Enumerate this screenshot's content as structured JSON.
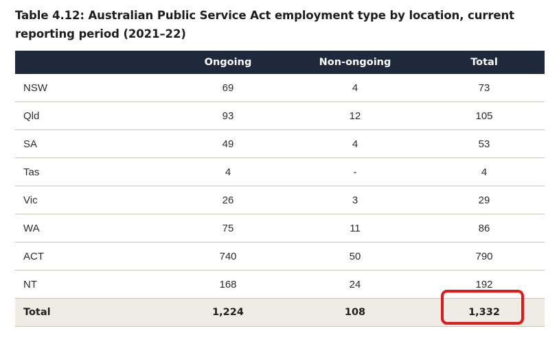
{
  "title": "Table 4.12: Australian Public Service Act employment type by location, current reporting period (2021–22)",
  "table": {
    "headers": [
      "",
      "Ongoing",
      "Non-ongoing",
      "Total"
    ],
    "rows": [
      {
        "location": "NSW",
        "ongoing": "69",
        "non_ongoing": "4",
        "total": "73"
      },
      {
        "location": "Qld",
        "ongoing": "93",
        "non_ongoing": "12",
        "total": "105"
      },
      {
        "location": "SA",
        "ongoing": "49",
        "non_ongoing": "4",
        "total": "53"
      },
      {
        "location": "Tas",
        "ongoing": "4",
        "non_ongoing": "-",
        "total": "4"
      },
      {
        "location": "Vic",
        "ongoing": "26",
        "non_ongoing": "3",
        "total": "29"
      },
      {
        "location": "WA",
        "ongoing": "75",
        "non_ongoing": "11",
        "total": "86"
      },
      {
        "location": "ACT",
        "ongoing": "740",
        "non_ongoing": "50",
        "total": "790"
      },
      {
        "location": "NT",
        "ongoing": "168",
        "non_ongoing": "24",
        "total": "192"
      }
    ],
    "total_row": {
      "location": "Total",
      "ongoing": "1,224",
      "non_ongoing": "108",
      "total": "1,332"
    }
  },
  "colors": {
    "header_bg": "#1e2a3b",
    "total_row_bg": "#efece6",
    "highlight": "#e01919"
  }
}
